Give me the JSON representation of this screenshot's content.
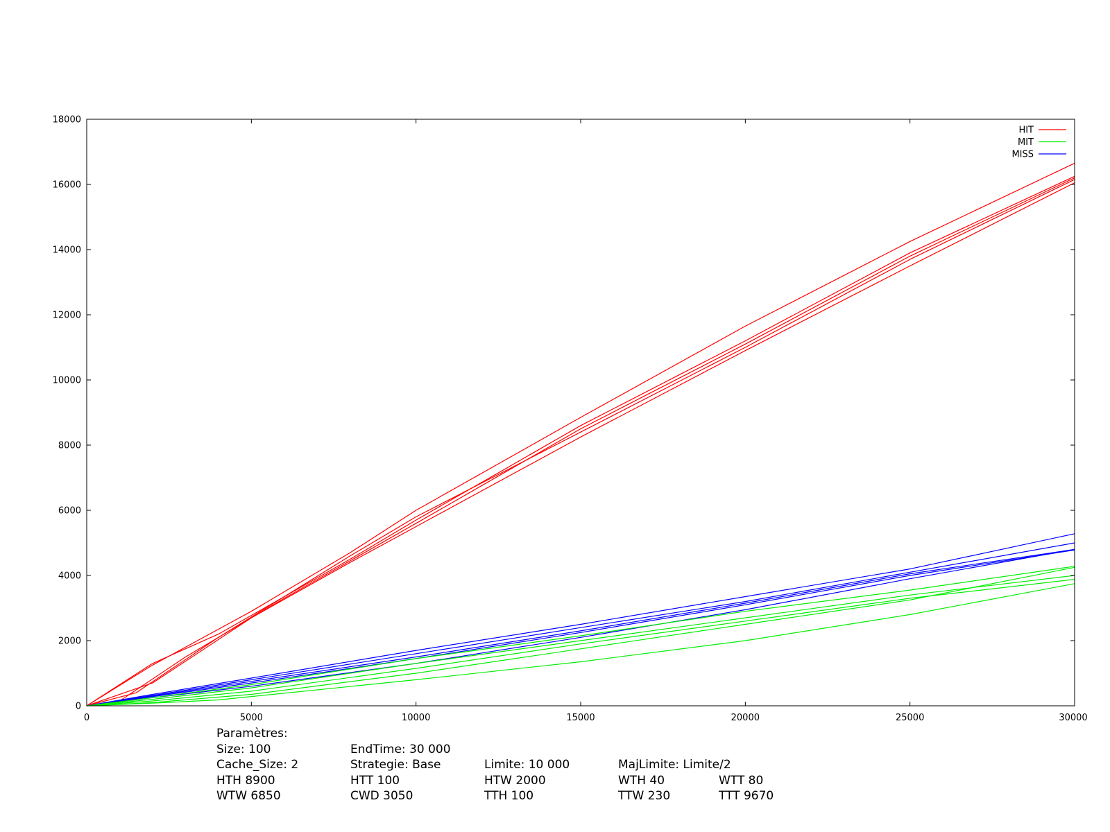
{
  "chart_data": {
    "type": "line",
    "title": "",
    "xlabel": "",
    "ylabel": "",
    "xlim": [
      0,
      30000
    ],
    "ylim": [
      0,
      18000
    ],
    "xticks": [
      0,
      5000,
      10000,
      15000,
      20000,
      25000,
      30000
    ],
    "yticks": [
      0,
      2000,
      4000,
      6000,
      8000,
      10000,
      12000,
      14000,
      16000,
      18000
    ],
    "xtick_labels": [
      "0",
      "5000",
      "10000",
      "15000",
      "20000",
      "25000",
      "30000"
    ],
    "ytick_labels": [
      "0",
      "2000",
      "4000",
      "6000",
      "8000",
      "10000",
      "12000",
      "14000",
      "16000",
      "18000"
    ],
    "grid": false,
    "legend_position": "top-right",
    "legend": [
      {
        "label": "HIT",
        "color": "#ff0000"
      },
      {
        "label": "MIT",
        "color": "#00ee00"
      },
      {
        "label": "MISS",
        "color": "#0000ff"
      }
    ],
    "series": [
      {
        "group": "HIT",
        "color": "#ff0000",
        "points": [
          [
            0,
            0
          ],
          [
            2000,
            1250
          ],
          [
            5000,
            2900
          ],
          [
            8000,
            4700
          ],
          [
            10000,
            6000
          ],
          [
            15000,
            8850
          ],
          [
            20000,
            11650
          ],
          [
            25000,
            14250
          ],
          [
            30000,
            16650
          ]
        ]
      },
      {
        "group": "HIT",
        "color": "#ff0000",
        "points": [
          [
            0,
            0
          ],
          [
            2000,
            1300
          ],
          [
            4000,
            2200
          ],
          [
            8000,
            4500
          ],
          [
            10000,
            5700
          ],
          [
            15000,
            8600
          ],
          [
            20000,
            11200
          ],
          [
            25000,
            13900
          ],
          [
            30000,
            16250
          ]
        ]
      },
      {
        "group": "HIT",
        "color": "#ff0000",
        "points": [
          [
            0,
            0
          ],
          [
            1500,
            400
          ],
          [
            4000,
            2100
          ],
          [
            8000,
            4600
          ],
          [
            10000,
            5800
          ],
          [
            15000,
            8400
          ],
          [
            20000,
            11000
          ],
          [
            25000,
            13700
          ],
          [
            30000,
            16150
          ]
        ]
      },
      {
        "group": "HIT",
        "color": "#ff0000",
        "points": [
          [
            0,
            0
          ],
          [
            2000,
            700
          ],
          [
            5000,
            2700
          ],
          [
            8000,
            4400
          ],
          [
            10000,
            5500
          ],
          [
            15000,
            8250
          ],
          [
            20000,
            10900
          ],
          [
            25000,
            13500
          ],
          [
            30000,
            16050
          ]
        ]
      },
      {
        "group": "HIT",
        "color": "#ff0000",
        "points": [
          [
            0,
            0
          ],
          [
            1000,
            150
          ],
          [
            3000,
            1500
          ],
          [
            6000,
            3300
          ],
          [
            10000,
            5600
          ],
          [
            15000,
            8500
          ],
          [
            20000,
            11100
          ],
          [
            25000,
            13800
          ],
          [
            30000,
            16200
          ]
        ]
      },
      {
        "group": "MISS",
        "color": "#0000ff",
        "points": [
          [
            0,
            0
          ],
          [
            2000,
            350
          ],
          [
            5000,
            850
          ],
          [
            10000,
            1700
          ],
          [
            15000,
            2500
          ],
          [
            20000,
            3350
          ],
          [
            25000,
            4200
          ],
          [
            30000,
            5280
          ]
        ]
      },
      {
        "group": "MISS",
        "color": "#0000ff",
        "points": [
          [
            0,
            0
          ],
          [
            2000,
            320
          ],
          [
            5000,
            800
          ],
          [
            10000,
            1600
          ],
          [
            15000,
            2400
          ],
          [
            20000,
            3200
          ],
          [
            25000,
            4100
          ],
          [
            30000,
            5000
          ]
        ]
      },
      {
        "group": "MISS",
        "color": "#0000ff",
        "points": [
          [
            0,
            0
          ],
          [
            2000,
            300
          ],
          [
            5000,
            750
          ],
          [
            10000,
            1500
          ],
          [
            15000,
            2300
          ],
          [
            20000,
            3150
          ],
          [
            25000,
            4050
          ],
          [
            30000,
            4800
          ]
        ]
      },
      {
        "group": "MISS",
        "color": "#0000ff",
        "points": [
          [
            0,
            0
          ],
          [
            2000,
            280
          ],
          [
            5000,
            700
          ],
          [
            10000,
            1450
          ],
          [
            15000,
            2250
          ],
          [
            20000,
            3100
          ],
          [
            25000,
            4000
          ],
          [
            30000,
            4780
          ]
        ]
      },
      {
        "group": "MISS",
        "color": "#0000ff",
        "points": [
          [
            0,
            0
          ],
          [
            2000,
            250
          ],
          [
            5000,
            600
          ],
          [
            10000,
            1300
          ],
          [
            15000,
            2100
          ],
          [
            20000,
            2950
          ],
          [
            25000,
            3900
          ],
          [
            30000,
            4800
          ]
        ]
      },
      {
        "group": "MIT",
        "color": "#00ee00",
        "points": [
          [
            0,
            0
          ],
          [
            2000,
            250
          ],
          [
            5000,
            650
          ],
          [
            10000,
            1450
          ],
          [
            15000,
            2150
          ],
          [
            20000,
            2900
          ],
          [
            25000,
            3550
          ],
          [
            30000,
            4280
          ]
        ]
      },
      {
        "group": "MIT",
        "color": "#00ee00",
        "points": [
          [
            0,
            0
          ],
          [
            2000,
            200
          ],
          [
            5000,
            550
          ],
          [
            10000,
            1300
          ],
          [
            15000,
            2000
          ],
          [
            20000,
            2700
          ],
          [
            25000,
            3400
          ],
          [
            30000,
            4000
          ]
        ]
      },
      {
        "group": "MIT",
        "color": "#00ee00",
        "points": [
          [
            0,
            0
          ],
          [
            2000,
            150
          ],
          [
            5000,
            450
          ],
          [
            10000,
            1150
          ],
          [
            15000,
            1900
          ],
          [
            20000,
            2600
          ],
          [
            25000,
            3300
          ],
          [
            30000,
            3880
          ]
        ]
      },
      {
        "group": "MIT",
        "color": "#00ee00",
        "points": [
          [
            0,
            0
          ],
          [
            2000,
            100
          ],
          [
            5000,
            350
          ],
          [
            10000,
            1000
          ],
          [
            15000,
            1750
          ],
          [
            20000,
            2500
          ],
          [
            25000,
            3250
          ],
          [
            30000,
            4250
          ]
        ]
      },
      {
        "group": "MIT",
        "color": "#00ee00",
        "points": [
          [
            0,
            0
          ],
          [
            2000,
            80
          ],
          [
            4000,
            180
          ],
          [
            10000,
            800
          ],
          [
            15000,
            1350
          ],
          [
            20000,
            2000
          ],
          [
            25000,
            2800
          ],
          [
            30000,
            3750
          ]
        ]
      }
    ]
  },
  "params": {
    "heading": "Paramètres:",
    "rows": [
      [
        "Size: 100",
        "EndTime: 30 000"
      ],
      [
        "Cache_Size: 2",
        "Strategie: Base",
        "Limite: 10 000",
        "MajLimite: Limite/2"
      ],
      [
        "HTH 8900",
        "HTT 100",
        "HTW 2000",
        "WTH 40",
        "WTT 80"
      ],
      [
        "WTW 6850",
        "CWD 3050",
        "TTH 100",
        "TTW 230",
        "TTT 9670"
      ]
    ]
  }
}
